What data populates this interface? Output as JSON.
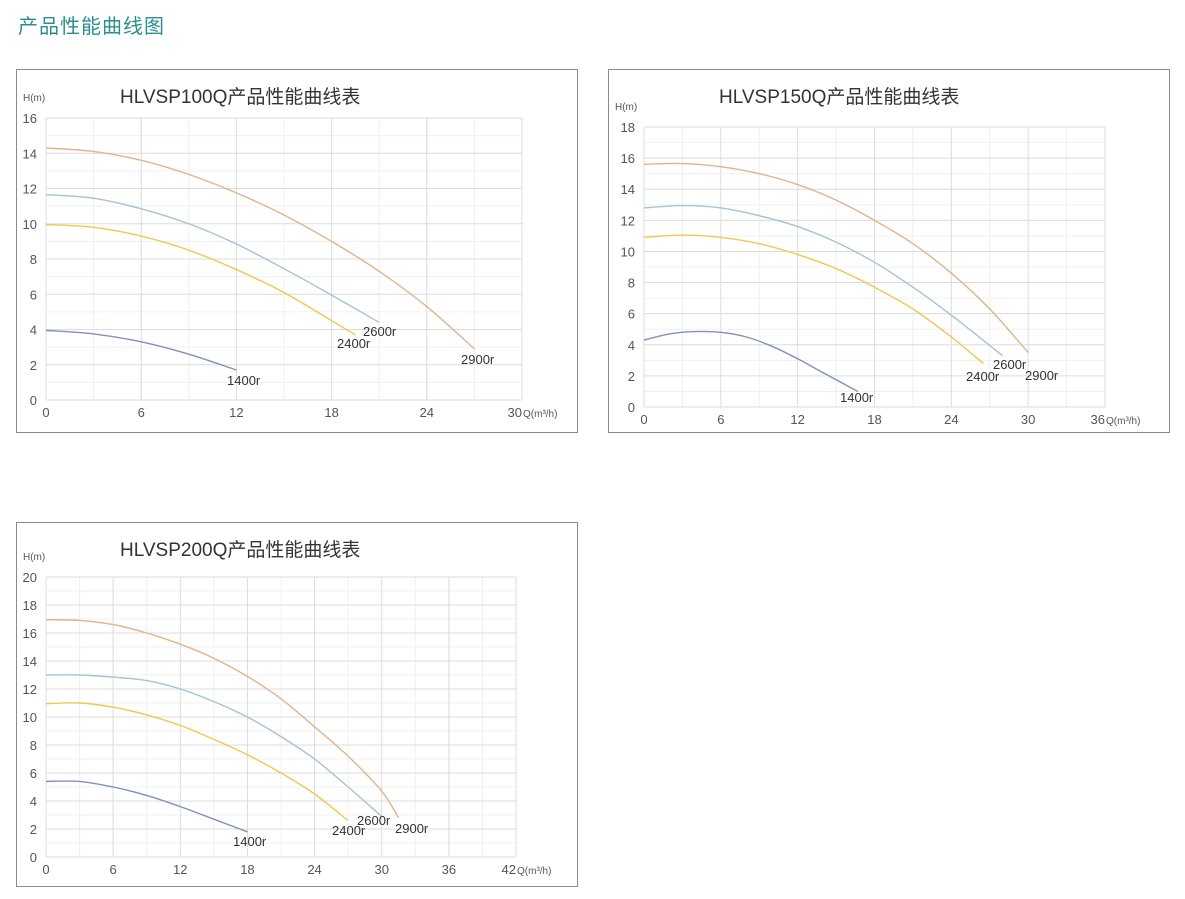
{
  "page": {
    "title": "产品性能曲线图",
    "title_color": "#2a8f8e"
  },
  "chart_data": [
    {
      "type": "line",
      "title": "HLVSP100Q产品性能曲线表",
      "ylabel": "H(m)",
      "xlabel": "Q(m³/h)",
      "xlim": [
        0,
        30
      ],
      "ylim": [
        0,
        16
      ],
      "xticks": [
        0,
        6,
        12,
        18,
        24,
        30
      ],
      "yticks": [
        0,
        2,
        4,
        6,
        8,
        10,
        12,
        14,
        16
      ],
      "grid": true,
      "series": [
        {
          "name": "1400r",
          "color": "#7f93b8",
          "x": [
            0,
            3,
            6,
            9,
            12
          ],
          "y": [
            3.95,
            3.75,
            3.3,
            2.6,
            1.7
          ]
        },
        {
          "name": "2400r",
          "color": "#f0c850",
          "x": [
            0,
            3,
            6,
            9,
            12,
            15,
            18,
            19.5
          ],
          "y": [
            9.95,
            9.8,
            9.3,
            8.5,
            7.4,
            6.1,
            4.5,
            3.7
          ]
        },
        {
          "name": "2600r",
          "color": "#a4c2d8",
          "x": [
            0,
            3,
            6,
            9,
            12,
            15,
            18,
            21
          ],
          "y": [
            11.65,
            11.45,
            10.85,
            10.0,
            8.85,
            7.45,
            5.95,
            4.4
          ]
        },
        {
          "name": "2900r",
          "color": "#e1b48a",
          "x": [
            0,
            3,
            6,
            9,
            12,
            15,
            18,
            21,
            24,
            27
          ],
          "y": [
            14.3,
            14.1,
            13.6,
            12.8,
            11.75,
            10.5,
            9.0,
            7.3,
            5.3,
            2.9
          ]
        }
      ]
    },
    {
      "type": "line",
      "title": "HLVSP150Q产品性能曲线表",
      "ylabel": "H(m)",
      "xlabel": "Q(m³/h)",
      "xlim": [
        0,
        36
      ],
      "ylim": [
        0,
        18
      ],
      "xticks": [
        0,
        6,
        12,
        18,
        24,
        30,
        36
      ],
      "yticks": [
        0,
        2,
        4,
        6,
        8,
        10,
        12,
        14,
        16,
        18
      ],
      "grid": true,
      "series": [
        {
          "name": "1400r",
          "color": "#7f93b8",
          "x": [
            0,
            2,
            4,
            6,
            8,
            10,
            12,
            14,
            16.7
          ],
          "y": [
            4.3,
            4.7,
            4.85,
            4.8,
            4.5,
            3.9,
            3.1,
            2.2,
            1.0
          ]
        },
        {
          "name": "2400r",
          "color": "#f0c850",
          "x": [
            0,
            3,
            6,
            9,
            12,
            15,
            18,
            21,
            24,
            26.5
          ],
          "y": [
            10.9,
            11.05,
            10.9,
            10.5,
            9.8,
            8.9,
            7.7,
            6.3,
            4.5,
            2.8
          ]
        },
        {
          "name": "2600r",
          "color": "#a4c2d8",
          "x": [
            0,
            3,
            6,
            9,
            12,
            15,
            18,
            21,
            24,
            28
          ],
          "y": [
            12.8,
            12.95,
            12.8,
            12.3,
            11.6,
            10.6,
            9.3,
            7.7,
            5.9,
            3.3
          ]
        },
        {
          "name": "2900r",
          "color": "#e1b48a",
          "x": [
            0,
            3,
            6,
            9,
            12,
            15,
            18,
            21,
            24,
            27,
            30
          ],
          "y": [
            15.6,
            15.65,
            15.45,
            15.0,
            14.3,
            13.3,
            12.0,
            10.5,
            8.6,
            6.3,
            3.5
          ]
        }
      ]
    },
    {
      "type": "line",
      "title": "HLVSP200Q产品性能曲线表",
      "ylabel": "H(m)",
      "xlabel": "Q(m³/h)",
      "xlim": [
        0,
        42
      ],
      "ylim": [
        0,
        20
      ],
      "xticks": [
        0,
        6,
        12,
        18,
        24,
        30,
        36,
        42
      ],
      "yticks": [
        0,
        2,
        4,
        6,
        8,
        10,
        12,
        14,
        16,
        18,
        20
      ],
      "grid": true,
      "series": [
        {
          "name": "1400r",
          "color": "#7f93b8",
          "x": [
            0,
            3,
            6,
            9,
            12,
            15,
            18
          ],
          "y": [
            5.4,
            5.4,
            5.0,
            4.4,
            3.6,
            2.7,
            1.8
          ]
        },
        {
          "name": "2400r",
          "color": "#f0c850",
          "x": [
            0,
            3,
            6,
            9,
            12,
            15,
            18,
            21,
            24,
            27
          ],
          "y": [
            10.95,
            11.0,
            10.7,
            10.15,
            9.4,
            8.4,
            7.3,
            6.0,
            4.5,
            2.6
          ]
        },
        {
          "name": "2600r",
          "color": "#a4c2d8",
          "x": [
            0,
            3,
            6,
            9,
            12,
            15,
            18,
            21,
            24,
            27,
            30
          ],
          "y": [
            13.0,
            13.0,
            12.85,
            12.6,
            12.0,
            11.1,
            10.0,
            8.6,
            7.0,
            5.0,
            2.9
          ]
        },
        {
          "name": "2900r",
          "color": "#e1b48a",
          "x": [
            0,
            3,
            6,
            9,
            12,
            15,
            18,
            21,
            24,
            27,
            30,
            31.5
          ],
          "y": [
            16.95,
            16.9,
            16.6,
            16.0,
            15.2,
            14.2,
            12.9,
            11.3,
            9.3,
            7.2,
            4.7,
            2.8
          ]
        }
      ]
    }
  ]
}
